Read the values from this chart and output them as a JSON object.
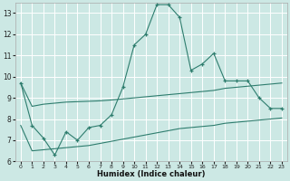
{
  "xlabel": "Humidex (Indice chaleur)",
  "bg_color": "#cce8e4",
  "grid_color": "#ffffff",
  "line_color": "#2e7d6e",
  "x_data": [
    0,
    1,
    2,
    3,
    4,
    5,
    6,
    7,
    8,
    9,
    10,
    11,
    12,
    13,
    14,
    15,
    16,
    17,
    18,
    19,
    20,
    21,
    22,
    23
  ],
  "main_line": [
    9.7,
    7.7,
    7.1,
    6.3,
    7.4,
    7.0,
    7.6,
    7.7,
    8.2,
    9.5,
    11.5,
    12.0,
    13.4,
    13.4,
    12.8,
    10.3,
    10.6,
    11.1,
    9.8,
    9.8,
    9.8,
    9.0,
    8.5,
    8.5
  ],
  "upper_line": [
    9.7,
    8.6,
    8.7,
    8.75,
    8.8,
    8.82,
    8.84,
    8.86,
    8.9,
    8.95,
    9.0,
    9.05,
    9.1,
    9.15,
    9.2,
    9.25,
    9.3,
    9.35,
    9.45,
    9.5,
    9.55,
    9.6,
    9.65,
    9.7
  ],
  "lower_line": [
    7.7,
    6.5,
    6.55,
    6.6,
    6.65,
    6.7,
    6.75,
    6.85,
    6.95,
    7.05,
    7.15,
    7.25,
    7.35,
    7.45,
    7.55,
    7.6,
    7.65,
    7.7,
    7.8,
    7.85,
    7.9,
    7.95,
    8.0,
    8.05
  ],
  "ylim": [
    6,
    13.5
  ],
  "xlim": [
    -0.5,
    23.5
  ],
  "yticks": [
    6,
    7,
    8,
    9,
    10,
    11,
    12,
    13
  ],
  "xticks": [
    0,
    1,
    2,
    3,
    4,
    5,
    6,
    7,
    8,
    9,
    10,
    11,
    12,
    13,
    14,
    15,
    16,
    17,
    18,
    19,
    20,
    21,
    22,
    23
  ]
}
